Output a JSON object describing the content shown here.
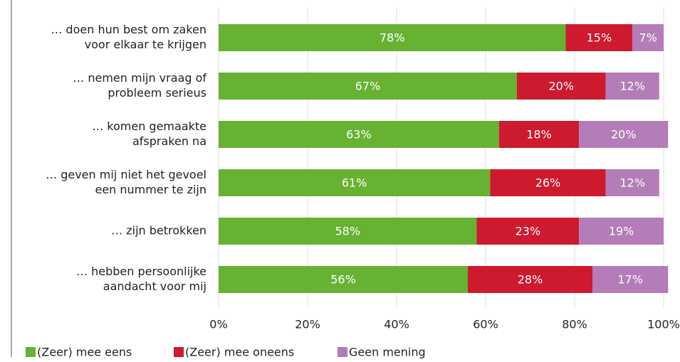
{
  "chart_data": {
    "type": "stacked_barh",
    "categories": [
      [
        "… doen hun best om zaken",
        "voor elkaar te krijgen"
      ],
      [
        "… nemen mijn vraag of",
        "probleem serieus"
      ],
      [
        "… komen gemaakte",
        "afspraken na"
      ],
      [
        "… geven mij niet het gevoel",
        "een nummer te zijn"
      ],
      [
        "… zijn betrokken"
      ],
      [
        "… hebben persoonlijke",
        "aandacht voor mij"
      ]
    ],
    "series": [
      {
        "name": "(Zeer) mee eens",
        "color": "#67b233",
        "values": [
          78,
          67,
          63,
          61,
          58,
          56
        ],
        "value_labels": [
          "78%",
          "67%",
          "63%",
          "61%",
          "58%",
          "56%"
        ]
      },
      {
        "name": "(Zeer) mee oneens",
        "color": "#cd1a2f",
        "values": [
          15,
          20,
          18,
          26,
          23,
          28
        ],
        "value_labels": [
          "15%",
          "20%",
          "18%",
          "26%",
          "23%",
          "28%"
        ]
      },
      {
        "name": "Geen mening",
        "color": "#b47cb8",
        "values": [
          7,
          12,
          20,
          12,
          19,
          17
        ],
        "value_labels": [
          "7%",
          "12%",
          "20%",
          "12%",
          "19%",
          "17%"
        ]
      }
    ],
    "xlim": [
      0,
      100
    ],
    "xticks": [
      {
        "value": 0,
        "label": "0%"
      },
      {
        "value": 20,
        "label": "20%"
      },
      {
        "value": 40,
        "label": "40%"
      },
      {
        "value": 60,
        "label": "60%"
      },
      {
        "value": 80,
        "label": "80%"
      },
      {
        "value": 100,
        "label": "100%"
      }
    ],
    "grid": true,
    "legend": "bottom"
  }
}
